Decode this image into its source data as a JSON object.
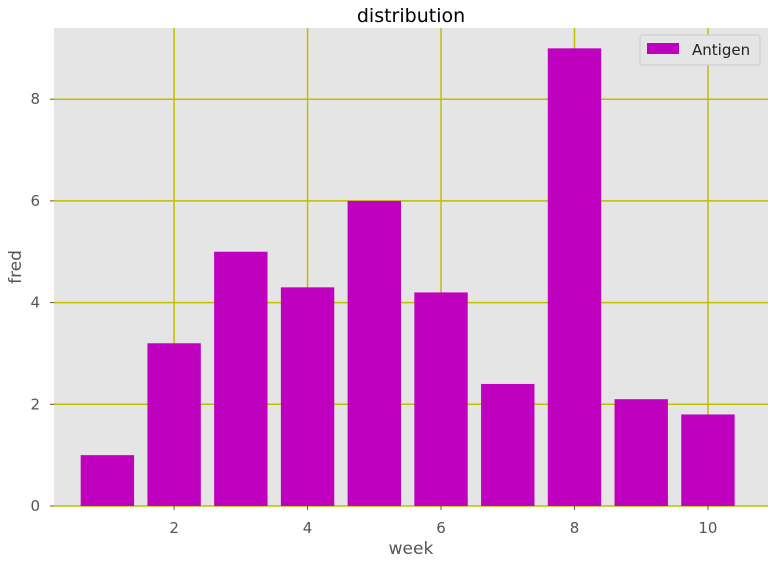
{
  "chart_data": {
    "type": "bar",
    "title": "distribution",
    "xlabel": "week",
    "ylabel": "fred",
    "x": [
      1,
      2,
      3,
      4,
      5,
      6,
      7,
      8,
      9,
      10
    ],
    "series": [
      {
        "name": "Antigen",
        "values": [
          1.0,
          3.2,
          5.0,
          4.3,
          6.0,
          4.2,
          2.4,
          9.0,
          2.1,
          1.8
        ]
      }
    ],
    "xlim": [
      0.2,
      10.9
    ],
    "ylim": [
      0,
      9.4
    ],
    "xticks": [
      2,
      4,
      6,
      8,
      10
    ],
    "yticks": [
      0,
      2,
      4,
      6,
      8
    ],
    "grid": true,
    "legend": "top-right",
    "colors": {
      "bar": "#bf00bf",
      "grid": "#bfbf00",
      "background": "#e5e5e5"
    }
  }
}
